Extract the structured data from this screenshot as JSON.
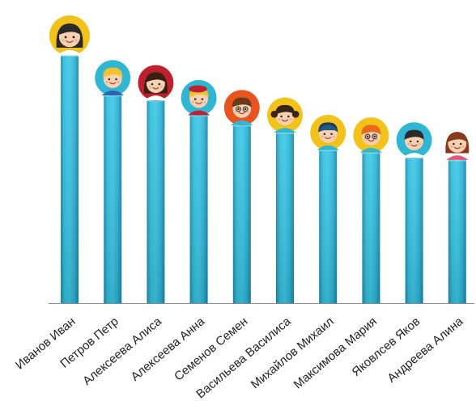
{
  "chart_data": {
    "type": "bar",
    "title": "",
    "xlabel": "",
    "ylabel": "",
    "ylim": [
      0,
      100
    ],
    "grid": false,
    "legend": "none",
    "bar_color": "#2BB3D6",
    "bar_color_dark": "#1C8FB0",
    "categories": [
      "Иванов Иван",
      "Петров Петр",
      "Алексеева Алиса",
      "Алексеева Анна",
      "Семенов Семен",
      "Васильева Василиса",
      "Михайлов Михаил",
      "Максимова Мария",
      "Яковлсев Яков",
      "Андреева Алина"
    ],
    "values": [
      100,
      84,
      82,
      76,
      72,
      69,
      62,
      61,
      59,
      58
    ],
    "avatars": [
      {
        "icon": "boy-avatar-icon",
        "bg": "#F2C21B",
        "hair": "#2a2a2a",
        "skin": "#F8D2B0",
        "shirt": "#ffffff",
        "hairstyle": "girl-long"
      },
      {
        "icon": "boy-avatar-icon",
        "bg": "#2FB6D3",
        "hair": "#F2C230",
        "skin": "#F8D2B0",
        "shirt": "#2e5fb0",
        "hairstyle": "boy"
      },
      {
        "icon": "girl-avatar-icon",
        "bg": "#C0202E",
        "hair": "#3a1f14",
        "skin": "#F8D2B0",
        "shirt": "#ffffff",
        "hairstyle": "girl-long"
      },
      {
        "icon": "girl-avatar-icon",
        "bg": "#2FB6D3",
        "hair": "#F2C230",
        "skin": "#F8D2B0",
        "shirt": "#c0202e",
        "hairstyle": "girl-beret"
      },
      {
        "icon": "boy-avatar-icon",
        "bg": "#E8541E",
        "hair": "#6b3a1c",
        "skin": "#F8D2B0",
        "shirt": "#2FB6D3",
        "hairstyle": "boy-glasses"
      },
      {
        "icon": "girl-avatar-icon",
        "bg": "#F2C21B",
        "hair": "#3a2418",
        "skin": "#F8D2B0",
        "shirt": "#2FB6D3",
        "hairstyle": "girl-pigtails"
      },
      {
        "icon": "boy-avatar-icon",
        "bg": "#F2C21B",
        "hair": "#1f3a5a",
        "skin": "#F8D2B0",
        "shirt": "#2FB6D3",
        "hairstyle": "boy-cap"
      },
      {
        "icon": "girl-avatar-icon",
        "bg": "#F2C21B",
        "hair": "#E86A1E",
        "skin": "#F8D2B0",
        "shirt": "#2FB6D3",
        "hairstyle": "girl-glasses"
      },
      {
        "icon": "boy-avatar-icon",
        "bg": "#2FB6D3",
        "hair": "#2a2a2a",
        "skin": "#F8D2B0",
        "shirt": "#ffffff",
        "hairstyle": "boy"
      },
      {
        "icon": "girl-avatar-icon",
        "bg": "#ffffff",
        "hair": "#8a3a1c",
        "skin": "#F8D2B0",
        "shirt": "#E8547A",
        "hairstyle": "girl-long-square"
      }
    ]
  }
}
